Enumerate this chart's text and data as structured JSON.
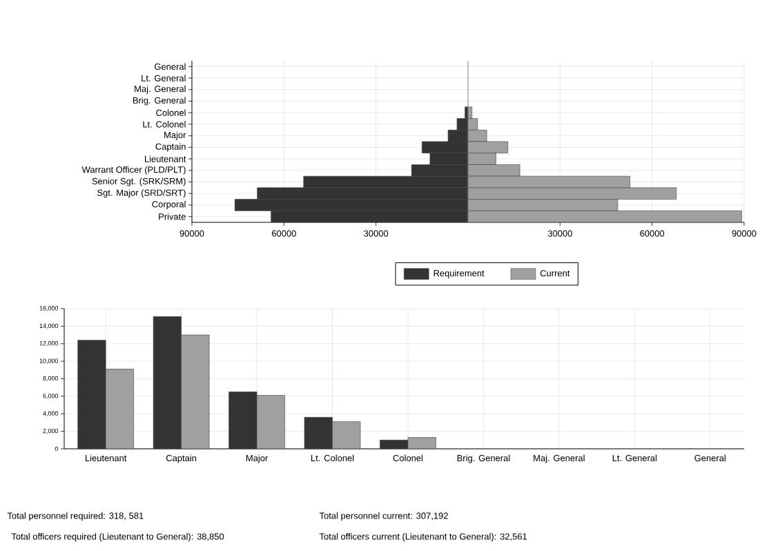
{
  "chart_data": [
    {
      "type": "bar",
      "orientation": "horizontal",
      "stacked": true,
      "categories": [
        "General",
        "Lt. General",
        "Maj. General",
        "Brig. General",
        "Colonel",
        "Lt. Colonel",
        "Major",
        "Captain",
        "Lieutenant",
        "Warrant Officer (PLD/PLT)",
        "Senior Sgt. (SRK/SRM)",
        "Sgt. Major (SRD/SRT)",
        "Corporal",
        "Private"
      ],
      "series": [
        {
          "name": "Requirement",
          "color": "#333333",
          "values": [
            0,
            0,
            0,
            0,
            -1000,
            -3600,
            -6500,
            -15000,
            -12400,
            -18400,
            -53600,
            -68700,
            -76000,
            -64200
          ]
        },
        {
          "name": "Current",
          "color": "#a0a0a0",
          "values": [
            0,
            0,
            0,
            0,
            1300,
            3100,
            6100,
            13000,
            9100,
            16900,
            52800,
            67900,
            48800,
            89200
          ]
        }
      ],
      "xlim": [
        -90000,
        90000
      ],
      "xticks": [
        {
          "value": -90000,
          "label": "90000"
        },
        {
          "value": -60000,
          "label": "60000"
        },
        {
          "value": -30000,
          "label": "30000"
        },
        30000,
        60000,
        90000
      ],
      "ref_lines": [
        {
          "axis": "x",
          "value": 0,
          "color": "#808080"
        }
      ],
      "grid": true,
      "legend": "bottom"
    },
    {
      "type": "bar",
      "categories": [
        "Lieutenant",
        "Captain",
        "Major",
        "Lt. Colonel",
        "Colonel",
        "Brig. General",
        "Maj. General",
        "Lt. General",
        "General"
      ],
      "series": [
        {
          "color": "#333333",
          "values": [
            12400,
            15100,
            6500,
            3600,
            1000,
            0,
            0,
            0,
            0
          ]
        },
        {
          "color": "#a0a0a0",
          "values": [
            9100,
            13000,
            6100,
            3100,
            1300,
            0,
            0,
            0,
            0
          ]
        }
      ],
      "ylim": [
        0,
        16000
      ],
      "yticks": [
        0,
        {
          "value": 2000,
          "label": "2,000"
        },
        {
          "value": 4000,
          "label": "4,000"
        },
        {
          "value": 6000,
          "label": "6,000"
        },
        {
          "value": 8000,
          "label": "8,000"
        },
        {
          "value": 10000,
          "label": "10,000"
        },
        {
          "value": 12000,
          "label": "12,000"
        },
        {
          "value": 14000,
          "label": "14,000"
        },
        {
          "value": 16000,
          "label": "16,000"
        }
      ],
      "grid": true,
      "annotations": [
        "Total personnel required: 318, 581",
        "Total personnel current: 307,192",
        "Total officers required (Lieutenant to General): 38,850",
        "Total officers current (Lieutenant to General): 32,561"
      ]
    }
  ]
}
